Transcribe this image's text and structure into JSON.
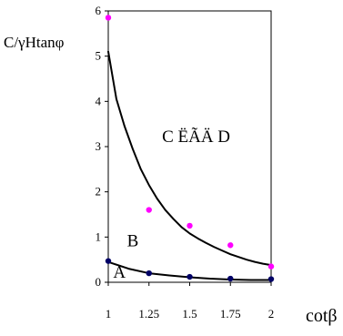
{
  "chart_data": {
    "type": "scatter",
    "title": "",
    "xlabel": "cotβ",
    "ylabel": "C/γHtanφ",
    "xlim": [
      1,
      2
    ],
    "ylim": [
      0,
      6
    ],
    "x_ticks": [
      "1",
      "1.25",
      "1.5",
      "1.75",
      "2"
    ],
    "y_ticks": [
      "0",
      "1",
      "2",
      "3",
      "4",
      "5",
      "6"
    ],
    "grid": false,
    "legend": "none",
    "series": [
      {
        "kind": "points",
        "color": "#ff00ff",
        "x": [
          1,
          1.25,
          1.5,
          1.75,
          2
        ],
        "y": [
          5.85,
          1.6,
          1.25,
          0.82,
          0.35
        ]
      },
      {
        "kind": "points",
        "color": "#000066",
        "x": [
          1,
          1.25,
          1.5,
          1.75,
          2
        ],
        "y": [
          0.47,
          0.2,
          0.12,
          0.08,
          0.07
        ]
      },
      {
        "kind": "curve",
        "color": "#000000",
        "x": [
          1,
          1.05,
          1.1,
          1.15,
          1.2,
          1.25,
          1.3,
          1.35,
          1.4,
          1.45,
          1.5,
          1.55,
          1.6,
          1.65,
          1.7,
          1.75,
          1.8,
          1.85,
          1.9,
          1.95,
          2
        ],
        "y": [
          5.1,
          4.05,
          3.45,
          2.95,
          2.5,
          2.15,
          1.85,
          1.6,
          1.4,
          1.22,
          1.08,
          0.97,
          0.87,
          0.78,
          0.7,
          0.62,
          0.56,
          0.5,
          0.45,
          0.41,
          0.38
        ]
      },
      {
        "kind": "curve",
        "color": "#000000",
        "x": [
          1,
          1.125,
          1.25,
          1.375,
          1.5,
          1.625,
          1.75,
          1.875,
          2
        ],
        "y": [
          0.45,
          0.3,
          0.2,
          0.15,
          0.11,
          0.08,
          0.06,
          0.05,
          0.05
        ]
      }
    ],
    "annotations": [
      {
        "text": "C ËÃÄ D",
        "x": 1.33,
        "y": 3.1
      },
      {
        "text": "B",
        "x": 1.115,
        "y": 0.8
      },
      {
        "text": "A",
        "x": 1.03,
        "y": 0.1
      }
    ]
  }
}
